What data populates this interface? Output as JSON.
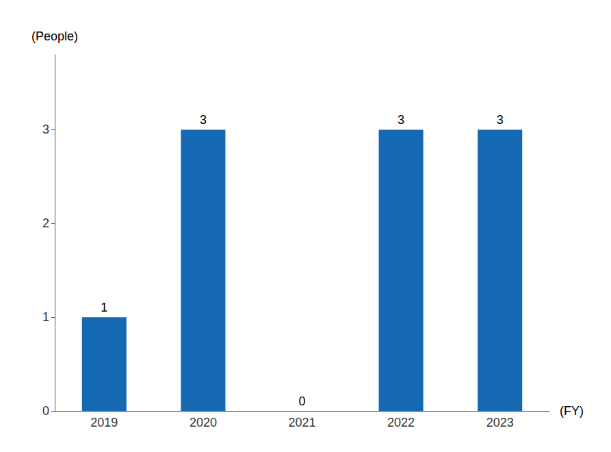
{
  "chart_data": {
    "type": "bar",
    "categories": [
      "2019",
      "2020",
      "2021",
      "2022",
      "2023"
    ],
    "values": [
      1,
      3,
      0,
      3,
      3
    ],
    "color": "#1469B2",
    "xlabel": "(FY)",
    "ylabel": "(People)",
    "ylim": [
      0,
      3.8
    ],
    "yticks": [
      0,
      1,
      2,
      3
    ],
    "grid": false,
    "data_labels": true
  }
}
